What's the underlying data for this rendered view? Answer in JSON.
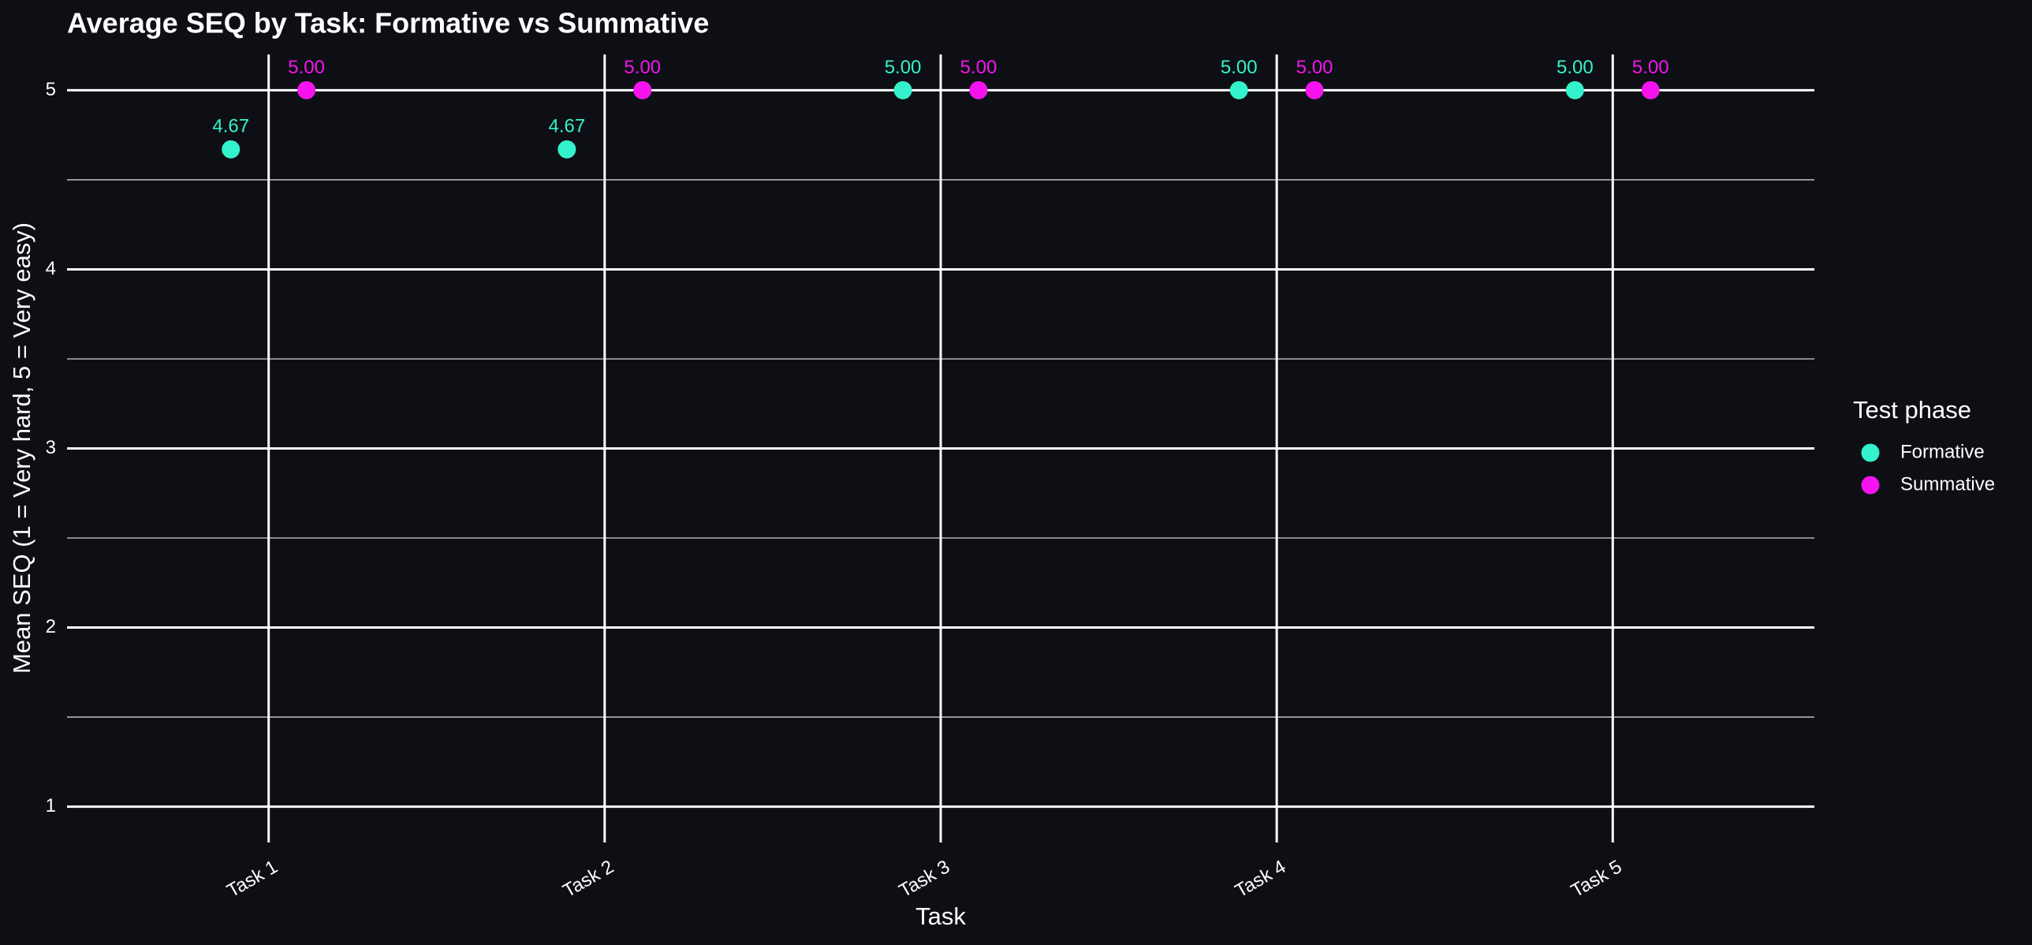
{
  "chart_data": {
    "type": "point",
    "title": "Average SEQ by Task: Formative vs Summative",
    "x_label": "Task",
    "y_label": "Mean SEQ (1 = Very hard, 5 = Very easy)",
    "categories": [
      "Task 1",
      "Task 2",
      "Task 3",
      "Task 4",
      "Task 5"
    ],
    "series": [
      {
        "name": "Formative",
        "color": "#33f2cc",
        "values": [
          4.67,
          4.67,
          5,
          5,
          5
        ],
        "value_labels": [
          "4.67",
          "4.67",
          "5.00",
          "5.00",
          "5.00"
        ]
      },
      {
        "name": "Summative",
        "color": "#f514ee",
        "values": [
          5,
          5,
          5,
          5,
          5
        ],
        "value_labels": [
          "5.00",
          "5.00",
          "5.00",
          "5.00",
          "5.00"
        ]
      }
    ],
    "ylim": [
      0.8,
      5.2
    ],
    "yticks": [
      1,
      2,
      3,
      4,
      5
    ],
    "minor_yticks": [
      1.5,
      2.5,
      3.5,
      4.5
    ],
    "grid": true,
    "legend_title": "Test phase",
    "legend_position": "right"
  }
}
